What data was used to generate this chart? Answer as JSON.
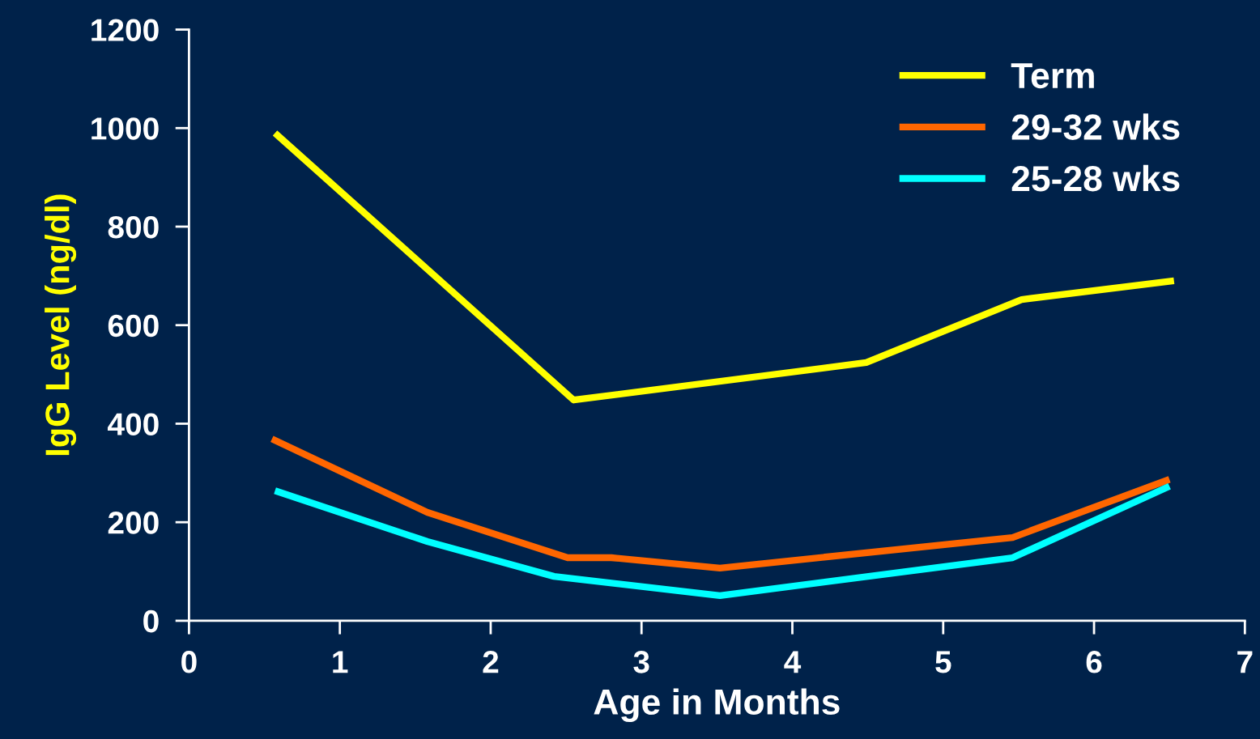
{
  "chart_data": {
    "type": "line",
    "xlabel": "Age in Months",
    "ylabel": "IgG Level (ng/dl)",
    "xlim": [
      0,
      7
    ],
    "xticks": [
      0,
      1,
      2,
      3,
      4,
      5,
      6,
      7
    ],
    "ylim": [
      0,
      1200
    ],
    "yticks": [
      0,
      200,
      400,
      600,
      800,
      1000,
      1200
    ],
    "grid": false,
    "legend": "top right",
    "marker": "none",
    "line_style": "solid",
    "series": [
      {
        "name": "Term",
        "color": "#ffff00",
        "x": [
          0.57,
          2.55,
          4.49,
          5.52,
          6.53
        ],
        "values": [
          990,
          448,
          524,
          652,
          690
        ]
      },
      {
        "name": "29-32 wks",
        "color": "#ff6600",
        "x": [
          0.55,
          1.58,
          2.51,
          2.8,
          3.52,
          5.46,
          6.5
        ],
        "values": [
          369,
          220,
          128,
          128,
          107,
          169,
          287
        ]
      },
      {
        "name": "25-28 wks",
        "color": "#00ffff",
        "x": [
          0.57,
          1.58,
          2.42,
          3.52,
          5.46,
          6.5
        ],
        "values": [
          264,
          161,
          90,
          51,
          128,
          273
        ]
      }
    ]
  }
}
